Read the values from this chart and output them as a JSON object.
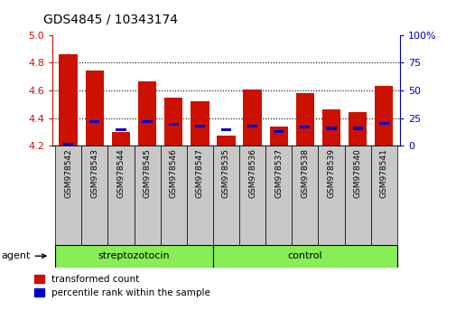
{
  "title": "GDS4845 / 10343174",
  "samples": [
    "GSM978542",
    "GSM978543",
    "GSM978544",
    "GSM978545",
    "GSM978546",
    "GSM978547",
    "GSM978535",
    "GSM978536",
    "GSM978537",
    "GSM978538",
    "GSM978539",
    "GSM978540",
    "GSM978541"
  ],
  "red_values": [
    4.865,
    4.745,
    4.3,
    4.665,
    4.55,
    4.52,
    4.27,
    4.605,
    4.34,
    4.58,
    4.465,
    4.44,
    4.63
  ],
  "blue_values": [
    4.21,
    4.375,
    4.315,
    4.375,
    4.355,
    4.34,
    4.315,
    4.34,
    4.302,
    4.335,
    4.325,
    4.325,
    4.36
  ],
  "group1_label": "streptozotocin",
  "group1_count": 6,
  "group2_label": "control",
  "group2_count": 7,
  "agent_label": "agent",
  "y_min": 4.2,
  "y_max": 5.0,
  "y_ticks": [
    4.2,
    4.4,
    4.6,
    4.8,
    5.0
  ],
  "y2_ticks": [
    0,
    25,
    50,
    75,
    100
  ],
  "red_color": "#cc1100",
  "blue_color": "#0000cc",
  "green_color": "#88ee55",
  "bar_bg": "#c8c8c8",
  "legend_red": "transformed count",
  "legend_blue": "percentile rank within the sample"
}
